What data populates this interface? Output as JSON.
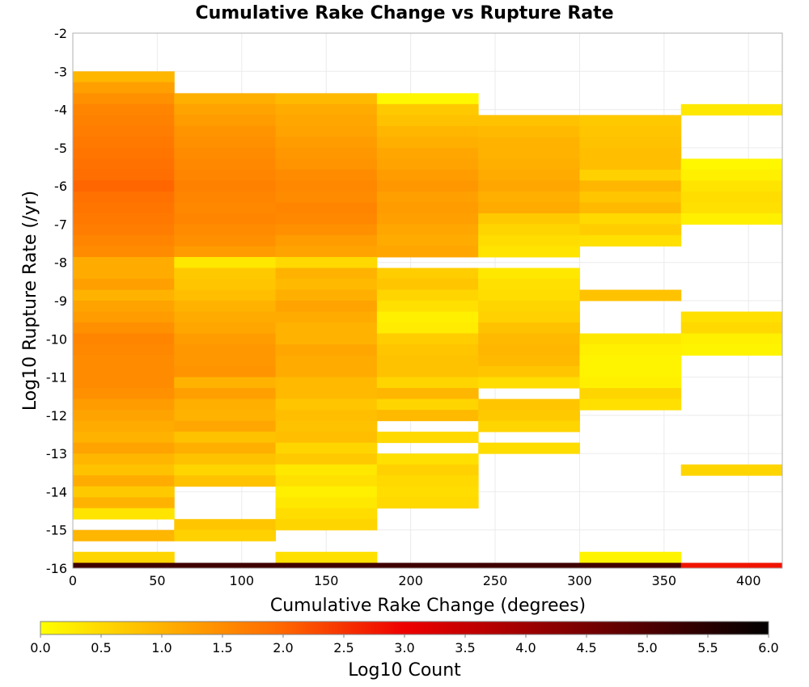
{
  "chart_data": {
    "type": "heatmap",
    "title": "Cumulative Rake Change vs Rupture Rate",
    "xlabel": "Cumulative Rake Change (degrees)",
    "ylabel": "Log10 Rupture Rate (/yr)",
    "xlim": [
      0,
      420
    ],
    "ylim": [
      -16,
      -2
    ],
    "x_ticks": [
      0,
      50,
      100,
      150,
      200,
      250,
      300,
      350,
      400
    ],
    "y_ticks": [
      -2,
      -3,
      -4,
      -5,
      -6,
      -7,
      -8,
      -9,
      -10,
      -11,
      -12,
      -13,
      -14,
      -15,
      -16
    ],
    "grid": true,
    "colorbar": {
      "label": "Log10 Count",
      "range": [
        0,
        6
      ],
      "ticks": [
        "0.0",
        "0.5",
        "1.0",
        "1.5",
        "2.0",
        "2.5",
        "3.0",
        "3.5",
        "4.0",
        "4.5",
        "5.0",
        "5.5",
        "6.0"
      ],
      "colors": [
        "#ffff00",
        "#ff6600",
        "#ee0000",
        "#000000"
      ]
    },
    "x_bin_width": 60,
    "y_bin_height": 0.2857,
    "row_y_top": [
      -3.0,
      -3.2857,
      -3.5714,
      -3.8571,
      -4.1429,
      -4.4286,
      -4.7143,
      -5.0,
      -5.2857,
      -5.5714,
      -5.8571,
      -6.1429,
      -6.4286,
      -6.7143,
      -7.0,
      -7.2857,
      -7.5714,
      -7.8571,
      -8.1429,
      -8.4286,
      -8.7143,
      -9.0,
      -9.2857,
      -9.5714,
      -9.8571,
      -10.1429,
      -10.4286,
      -10.7143,
      -11.0,
      -11.2857,
      -11.5714,
      -11.8571,
      -12.1429,
      -12.4286,
      -12.7143,
      -13.0,
      -13.2857,
      -13.5714,
      -13.8571,
      -14.1429,
      -14.4286,
      -14.7143,
      -15.0,
      -15.2857,
      -15.5714
    ],
    "columns": [
      {
        "x0": 0,
        "values": [
          0.95,
          1.25,
          1.45,
          1.6,
          1.65,
          1.7,
          1.75,
          1.8,
          1.85,
          1.9,
          2.0,
          1.85,
          1.8,
          1.75,
          1.7,
          1.6,
          1.5,
          1.1,
          1.1,
          1.25,
          1.0,
          1.2,
          1.3,
          1.45,
          1.6,
          1.55,
          1.5,
          1.5,
          1.5,
          1.45,
          1.3,
          1.2,
          1.1,
          1.0,
          1.2,
          0.95,
          0.8,
          1.1,
          0.7,
          1.0,
          0.35,
          null,
          0.95,
          null,
          0.55
        ]
      },
      {
        "x0": 60,
        "values": [
          null,
          null,
          1.05,
          1.2,
          1.3,
          1.4,
          1.45,
          1.5,
          1.55,
          1.6,
          1.65,
          1.6,
          1.55,
          1.6,
          1.5,
          1.45,
          1.3,
          0.3,
          0.7,
          0.75,
          0.85,
          1.0,
          1.1,
          1.15,
          1.3,
          1.35,
          1.35,
          1.4,
          1.0,
          1.25,
          1.05,
          1.0,
          1.15,
          0.8,
          1.05,
          0.8,
          0.55,
          0.8,
          null,
          null,
          null,
          0.75,
          0.6,
          null,
          null
        ]
      },
      {
        "x0": 120,
        "values": [
          null,
          null,
          0.9,
          1.1,
          1.15,
          1.2,
          1.3,
          1.35,
          1.4,
          1.5,
          1.55,
          1.5,
          1.6,
          1.55,
          1.45,
          1.3,
          1.2,
          0.5,
          1.0,
          0.9,
          1.05,
          1.2,
          1.1,
          1.0,
          1.0,
          1.15,
          1.1,
          1.1,
          0.9,
          0.9,
          0.75,
          0.85,
          0.8,
          0.85,
          0.55,
          0.7,
          0.3,
          0.4,
          0.2,
          0.3,
          0.45,
          0.55,
          null,
          null,
          0.4
        ]
      },
      {
        "x0": 180,
        "values": [
          null,
          null,
          0.1,
          0.7,
          0.8,
          0.95,
          1.05,
          1.15,
          1.2,
          1.3,
          1.35,
          1.25,
          1.3,
          1.25,
          1.15,
          1.1,
          1.15,
          null,
          0.65,
          0.75,
          0.55,
          0.4,
          0.2,
          0.25,
          0.65,
          0.75,
          0.8,
          0.8,
          0.55,
          0.95,
          0.55,
          0.9,
          null,
          0.5,
          null,
          0.4,
          0.6,
          0.5,
          0.45,
          0.5,
          null,
          null,
          null,
          null,
          null
        ]
      },
      {
        "x0": 240,
        "values": [
          null,
          null,
          null,
          null,
          0.8,
          0.9,
          1.0,
          1.0,
          1.05,
          1.1,
          1.15,
          1.05,
          1.1,
          0.7,
          0.55,
          0.45,
          0.35,
          null,
          0.3,
          0.4,
          0.45,
          0.55,
          0.6,
          0.8,
          0.9,
          0.95,
          0.9,
          0.75,
          0.45,
          null,
          0.75,
          0.7,
          0.55,
          null,
          0.45,
          null,
          null,
          null,
          null,
          null,
          null,
          null,
          null,
          null,
          null
        ]
      },
      {
        "x0": 300,
        "values": [
          null,
          null,
          null,
          null,
          0.7,
          0.75,
          0.8,
          0.85,
          0.85,
          0.6,
          0.95,
          0.75,
          0.9,
          0.5,
          0.65,
          0.4,
          null,
          null,
          null,
          null,
          0.8,
          null,
          null,
          null,
          0.3,
          0.2,
          0.15,
          0.15,
          0.2,
          0.55,
          0.4,
          null,
          null,
          null,
          null,
          null,
          null,
          null,
          null,
          null,
          null,
          null,
          null,
          null,
          0.15
        ]
      },
      {
        "x0": 360,
        "values": [
          null,
          null,
          null,
          0.3,
          null,
          null,
          null,
          null,
          0.1,
          0.2,
          0.35,
          0.45,
          0.4,
          0.2,
          null,
          null,
          null,
          null,
          null,
          null,
          null,
          null,
          0.4,
          0.5,
          0.2,
          0.15,
          null,
          null,
          null,
          null,
          null,
          null,
          null,
          null,
          null,
          null,
          0.55,
          null,
          null,
          null,
          null,
          null,
          null,
          null,
          null
        ]
      }
    ],
    "bottom_row": {
      "y_top": -15.86,
      "y_bottom": -16,
      "values": [
        5.2,
        5.2,
        5.2,
        5.2,
        5.2,
        5.2,
        2.8
      ]
    }
  }
}
